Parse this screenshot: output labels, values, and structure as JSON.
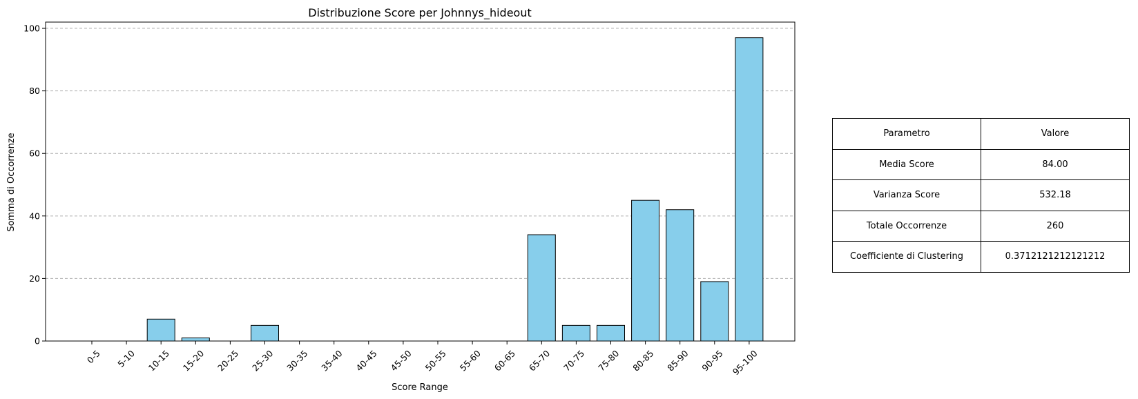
{
  "chart_data": {
    "type": "bar",
    "title": "Distribuzione Score per Johnnys_hideout",
    "xlabel": "Score Range",
    "ylabel": "Somma di Occorrenze",
    "categories": [
      "0-5",
      "5-10",
      "10-15",
      "15-20",
      "20-25",
      "25-30",
      "30-35",
      "35-40",
      "40-45",
      "45-50",
      "50-55",
      "55-60",
      "60-65",
      "65-70",
      "70-75",
      "75-80",
      "80-85",
      "85-90",
      "90-95",
      "95-100"
    ],
    "values": [
      0,
      0,
      7,
      1,
      0,
      5,
      0,
      0,
      0,
      0,
      0,
      0,
      0,
      34,
      5,
      5,
      45,
      42,
      19,
      97
    ],
    "ylim": [
      0,
      102
    ],
    "yticks": [
      0,
      20,
      40,
      60,
      80,
      100
    ],
    "grid": "y-dashed",
    "bar_color": "#87ceeb",
    "edge_color": "#000000"
  },
  "table": {
    "header": [
      "Parametro",
      "Valore"
    ],
    "rows": [
      [
        "Media Score",
        "84.00"
      ],
      [
        "Varianza Score",
        "532.18"
      ],
      [
        "Totale Occorrenze",
        "260"
      ],
      [
        "Coefficiente di Clustering",
        "0.3712121212121212"
      ]
    ]
  }
}
